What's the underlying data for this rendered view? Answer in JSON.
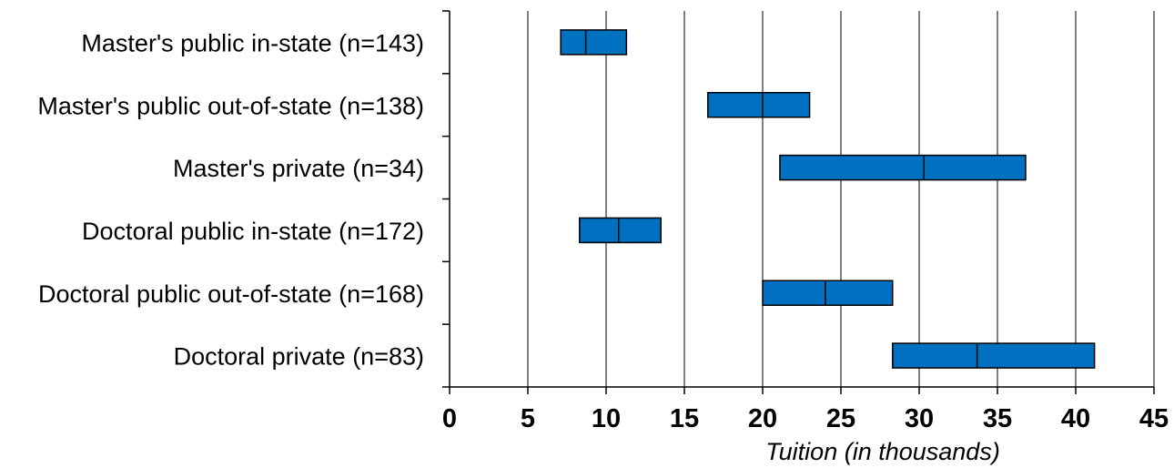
{
  "chart_data": {
    "type": "box",
    "orientation": "horizontal",
    "title": "",
    "xlabel": "Tuition (in thousands)",
    "ylabel": "",
    "xlim": [
      0,
      45
    ],
    "x_ticks": [
      0,
      5,
      10,
      15,
      20,
      25,
      30,
      35,
      40,
      45
    ],
    "grid": "vertical",
    "legend": "none",
    "bar_color": "#0070C0",
    "categories": [
      "Master's public in-state (n=143)",
      "Master's public out-of-state (n=138)",
      "Master's private (n=34)",
      "Doctoral public in-state (n=172)",
      "Doctoral public out-of-state (n=168)",
      "Doctoral private (n=83)"
    ],
    "boxes": [
      {
        "q1": 7.1,
        "median": 8.7,
        "q3": 11.3
      },
      {
        "q1": 16.5,
        "median": 20.0,
        "q3": 23.0
      },
      {
        "q1": 21.1,
        "median": 30.3,
        "q3": 36.8
      },
      {
        "q1": 8.3,
        "median": 10.8,
        "q3": 13.5
      },
      {
        "q1": 20.0,
        "median": 24.0,
        "q3": 28.3
      },
      {
        "q1": 28.3,
        "median": 33.7,
        "q3": 41.2
      }
    ]
  }
}
